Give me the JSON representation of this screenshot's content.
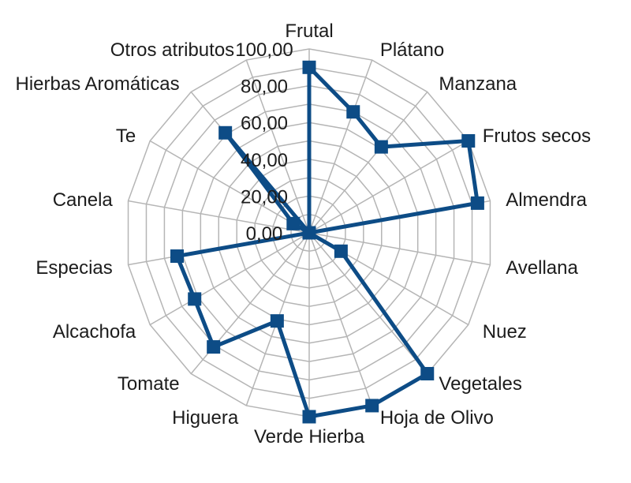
{
  "chart_data": {
    "type": "radar",
    "title": "",
    "categories": [
      "Frutal",
      "Plátano",
      "Manzana",
      "Frutos secos",
      "Almendra",
      "Avellana",
      "Nuez",
      "Vegetales",
      "Hoja de Olivo",
      "Verde Hierba",
      "Higuera",
      "Tomate",
      "Alcachofa",
      "Especias",
      "Canela",
      "Te",
      "Hierbas Aromáticas",
      "Otros atributos"
    ],
    "values": [
      90,
      70,
      61,
      100,
      93,
      0,
      20,
      100,
      100,
      100,
      51,
      81,
      72,
      73,
      0,
      10,
      71,
      0
    ],
    "radial_axis": {
      "min": 0,
      "max": 100,
      "major_step": 20,
      "minor_step": 10,
      "tick_labels": [
        "0,00",
        "20,00",
        "40,00",
        "60,00",
        "80,00",
        "100,00"
      ]
    },
    "start_axis": "Frutal",
    "direction": "clockwise",
    "grid": true,
    "legend": false,
    "marker_shape": "square",
    "colors": {
      "series": "#0d4c86",
      "grid": "#b5b5b5",
      "label": "#1c1c1c"
    }
  }
}
